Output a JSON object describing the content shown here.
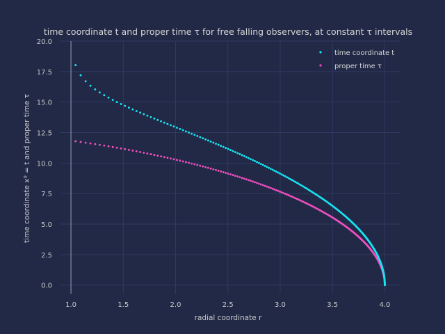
{
  "chart_data": {
    "type": "scatter",
    "title": "time coordinate t and proper time τ for free falling observers, at constant τ intervals",
    "xlabel": "radial coordinate r",
    "ylabel": "time coordinate x⁰ = t and proper time τ",
    "xlim": [
      0.9,
      4.15
    ],
    "ylim": [
      -0.7,
      20.0
    ],
    "xticks": [
      "1.0",
      "1.5",
      "2.0",
      "2.5",
      "3.0",
      "3.5",
      "4.0"
    ],
    "yticks": [
      "0.0",
      "2.5",
      "5.0",
      "7.5",
      "10.0",
      "12.5",
      "15.0",
      "17.5",
      "20.0"
    ],
    "grid": true,
    "legend_position": "top-right",
    "n_points_per_series": 201,
    "r_start": 4.0,
    "tau_end": 11.79,
    "series": [
      {
        "name": "time coordinate t",
        "color": "#18e5f2"
      },
      {
        "name": "proper time τ",
        "color": "#f04fbf"
      }
    ]
  }
}
